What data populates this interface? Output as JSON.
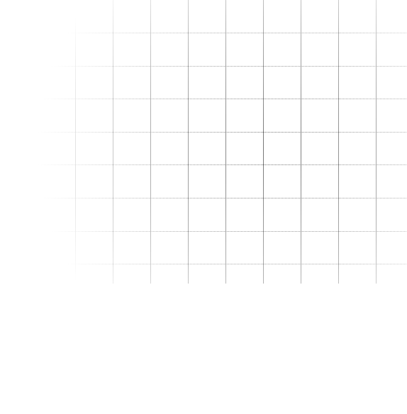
{
  "canvas": {
    "background_color": "#ffffff",
    "grid_line_color": "#000000",
    "grid_style": "faint radial fade grid",
    "grid_visible": true
  }
}
